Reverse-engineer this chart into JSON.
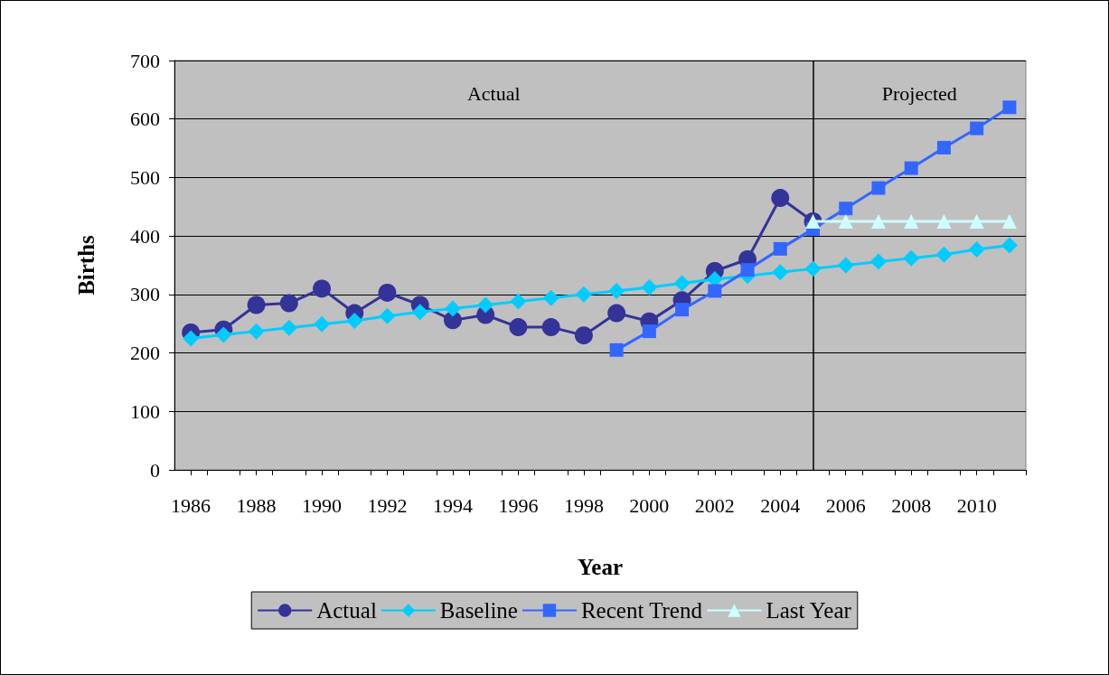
{
  "chart_data": {
    "type": "line",
    "xlabel": "Year",
    "ylabel": "Births",
    "xlim": [
      1985.5,
      2011.5
    ],
    "xticks": [
      1986,
      {
        "value": 1986.5,
        "label": null
      },
      1988,
      {
        "value": 1988.5,
        "label": null
      },
      1990,
      {
        "value": 1990.5,
        "label": null
      },
      1992,
      {
        "value": 1992.5,
        "label": null
      },
      1994,
      {
        "value": 1994.5,
        "label": null
      },
      1996,
      {
        "value": 1996.5,
        "label": null
      },
      1998,
      {
        "value": 1998.5,
        "label": null
      },
      2000,
      {
        "value": 2000.5,
        "label": null
      },
      2002,
      {
        "value": 2002.5,
        "label": null
      },
      2004,
      {
        "value": 2004.5,
        "label": null
      },
      2006,
      {
        "value": 2006.5,
        "label": null
      },
      2008,
      {
        "value": 2008.5,
        "label": null
      },
      2010,
      {
        "value": 2010.5,
        "label": null
      },
      {
        "value": 1987.5,
        "label": null
      },
      {
        "value": 1989.5,
        "label": null
      },
      {
        "value": 1991.5,
        "label": null
      },
      {
        "value": 1993.5,
        "label": null
      },
      {
        "value": 1995.5,
        "label": null
      },
      {
        "value": 1997.5,
        "label": null
      },
      {
        "value": 1999.5,
        "label": null
      },
      {
        "value": 2001.5,
        "label": null
      },
      {
        "value": 2003.5,
        "label": null
      },
      {
        "value": 2005.5,
        "label": null
      },
      {
        "value": 2007.5,
        "label": null
      },
      {
        "value": 2009.5,
        "label": null
      },
      {
        "value": 2011.5,
        "label": null
      }
    ],
    "ylim": [
      0,
      700
    ],
    "yticks": [
      0,
      100,
      200,
      300,
      400,
      500,
      600,
      700
    ],
    "grid": "y",
    "legend": "bottom",
    "line_style": "solid",
    "series": [
      {
        "name": "Actual",
        "color": "#333399",
        "marker": "circle",
        "x": [
          1986,
          1987,
          1988,
          1989,
          1990,
          1991,
          1992,
          1993,
          1994,
          1995,
          1996,
          1997,
          1998,
          1999,
          2000,
          2001,
          2002,
          2003,
          2004,
          2005
        ],
        "values": [
          235,
          240,
          282,
          285,
          310,
          268,
          303,
          282,
          256,
          265,
          244,
          244,
          230,
          268,
          254,
          290,
          340,
          360,
          465,
          425
        ]
      },
      {
        "name": "Baseline",
        "color": "#00ccff",
        "marker": "diamond",
        "x": [
          1986,
          1987,
          1988,
          1989,
          1990,
          1991,
          1992,
          1993,
          1994,
          1995,
          1996,
          1997,
          1998,
          1999,
          2000,
          2001,
          2002,
          2003,
          2004,
          2005,
          2006,
          2007,
          2008,
          2009,
          2010,
          2011
        ],
        "values": [
          225,
          231,
          237,
          243,
          249,
          255,
          263,
          270,
          276,
          282,
          288,
          294,
          300,
          306,
          312,
          319,
          326,
          332,
          338,
          344,
          350,
          356,
          362,
          368,
          377,
          384
        ]
      },
      {
        "name": "Recent Trend",
        "color": "#3366ff",
        "marker": "square",
        "x": [
          1999,
          2000,
          2001,
          2002,
          2003,
          2004,
          2005,
          2006,
          2007,
          2008,
          2009,
          2010,
          2011
        ],
        "values": [
          205,
          237,
          274,
          306,
          342,
          378,
          412,
          447,
          482,
          516,
          551,
          584,
          620
        ]
      },
      {
        "name": "Last Year",
        "color": "#ccffff",
        "marker": "triangle",
        "x": [
          2005,
          2006,
          2007,
          2008,
          2009,
          2010,
          2011
        ],
        "values": [
          425,
          425,
          425,
          425,
          425,
          425,
          425
        ]
      }
    ],
    "ref_lines": [
      {
        "axis": "x",
        "value": 2005,
        "color": "#000000"
      }
    ],
    "annotations": [
      "Actual",
      "Projected"
    ]
  }
}
